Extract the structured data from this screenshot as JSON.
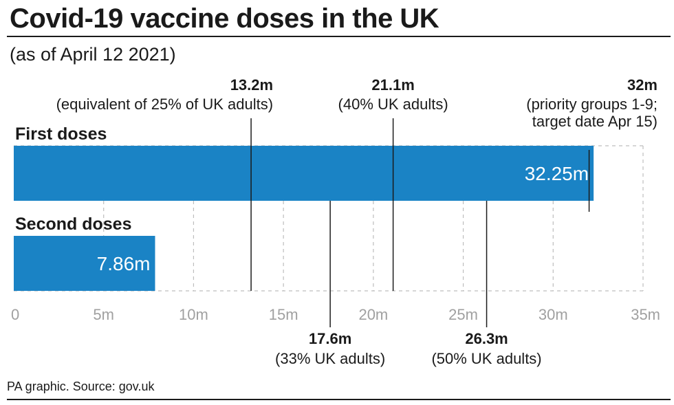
{
  "header": {
    "title": "Covid-19 vaccine doses in the UK",
    "subtitle": "(as of April 12 2021)"
  },
  "footer": {
    "source": "PA graphic. Source: gov.uk"
  },
  "colors": {
    "bar": "#1a83c5",
    "grid": "#bdbdbd",
    "text": "#1a1a1a",
    "tick": "#a0a0a0"
  },
  "chart_data": {
    "type": "bar",
    "orientation": "horizontal",
    "categories": [
      "First doses",
      "Second doses"
    ],
    "values": [
      32.25,
      7.86
    ],
    "value_labels": [
      "32.25m",
      "7.86m"
    ],
    "unit": "m",
    "xlim": [
      0,
      35
    ],
    "xticks": [
      0,
      5,
      10,
      15,
      20,
      25,
      30,
      35
    ],
    "xtick_labels": [
      "0",
      "5m",
      "10m",
      "15m",
      "20m",
      "25m",
      "30m",
      "35m"
    ],
    "grid": true,
    "annotations": [
      {
        "value": 13.2,
        "label": "13.2m",
        "lines": [
          "(equivalent of 25% of UK adults)"
        ],
        "position": "above"
      },
      {
        "value": 21.1,
        "label": "21.1m",
        "lines": [
          "(40% UK adults)"
        ],
        "position": "above"
      },
      {
        "value": 32,
        "label": "32m",
        "lines": [
          "(priority groups 1-9;",
          "target date Apr 15)"
        ],
        "position": "above"
      },
      {
        "value": 17.6,
        "label": "17.6m",
        "lines": [
          "(33% UK adults)"
        ],
        "position": "below"
      },
      {
        "value": 26.3,
        "label": "26.3m",
        "lines": [
          "(50% UK adults)"
        ],
        "position": "below"
      }
    ]
  }
}
